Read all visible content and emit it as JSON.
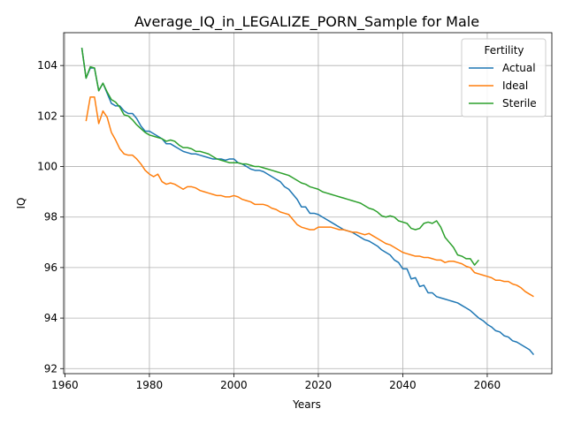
{
  "chart_data": {
    "type": "line",
    "title": "Average_IQ_in_LEGALIZE_PORN_Sample for Male",
    "xlabel": "Years",
    "ylabel": "IQ",
    "xlim": [
      1959.7,
      2075.3
    ],
    "ylim": [
      91.8,
      105.3
    ],
    "xticks": [
      1960,
      1980,
      2000,
      2020,
      2040,
      2060
    ],
    "yticks": [
      92,
      94,
      96,
      98,
      100,
      102,
      104
    ],
    "grid": true,
    "legend": {
      "title": "Fertility",
      "placement": "top-right"
    },
    "series": [
      {
        "name": "Actual",
        "color": "#1f77b4",
        "points": [
          [
            1964,
            104.7
          ],
          [
            1965,
            103.5
          ],
          [
            1966,
            103.9
          ],
          [
            1967,
            103.9
          ],
          [
            1968,
            103.0
          ],
          [
            1969,
            103.3
          ],
          [
            1970,
            102.9
          ],
          [
            1971,
            102.5
          ],
          [
            1972,
            102.4
          ],
          [
            1973,
            102.4
          ],
          [
            1974,
            102.2
          ],
          [
            1975,
            102.1
          ],
          [
            1976,
            102.1
          ],
          [
            1977,
            101.9
          ],
          [
            1978,
            101.6
          ],
          [
            1979,
            101.4
          ],
          [
            1980,
            101.4
          ],
          [
            1981,
            101.3
          ],
          [
            1982,
            101.2
          ],
          [
            1983,
            101.1
          ],
          [
            1984,
            100.9
          ],
          [
            1985,
            100.9
          ],
          [
            1986,
            100.8
          ],
          [
            1987,
            100.7
          ],
          [
            1988,
            100.6
          ],
          [
            1989,
            100.55
          ],
          [
            1990,
            100.5
          ],
          [
            1991,
            100.5
          ],
          [
            1992,
            100.45
          ],
          [
            1993,
            100.4
          ],
          [
            1994,
            100.35
          ],
          [
            1995,
            100.3
          ],
          [
            1996,
            100.3
          ],
          [
            1997,
            100.3
          ],
          [
            1998,
            100.25
          ],
          [
            1999,
            100.3
          ],
          [
            2000,
            100.3
          ],
          [
            2001,
            100.15
          ],
          [
            2002,
            100.1
          ],
          [
            2003,
            100.0
          ],
          [
            2004,
            99.9
          ],
          [
            2005,
            99.85
          ],
          [
            2006,
            99.85
          ],
          [
            2007,
            99.8
          ],
          [
            2008,
            99.7
          ],
          [
            2009,
            99.6
          ],
          [
            2010,
            99.5
          ],
          [
            2011,
            99.4
          ],
          [
            2012,
            99.2
          ],
          [
            2013,
            99.1
          ],
          [
            2014,
            98.9
          ],
          [
            2015,
            98.7
          ],
          [
            2016,
            98.4
          ],
          [
            2017,
            98.4
          ],
          [
            2018,
            98.15
          ],
          [
            2019,
            98.15
          ],
          [
            2020,
            98.1
          ],
          [
            2021,
            98.0
          ],
          [
            2022,
            97.9
          ],
          [
            2023,
            97.8
          ],
          [
            2024,
            97.7
          ],
          [
            2025,
            97.6
          ],
          [
            2026,
            97.5
          ],
          [
            2027,
            97.45
          ],
          [
            2028,
            97.4
          ],
          [
            2029,
            97.3
          ],
          [
            2030,
            97.2
          ],
          [
            2031,
            97.1
          ],
          [
            2032,
            97.05
          ],
          [
            2033,
            96.95
          ],
          [
            2034,
            96.85
          ],
          [
            2035,
            96.7
          ],
          [
            2036,
            96.6
          ],
          [
            2037,
            96.5
          ],
          [
            2038,
            96.3
          ],
          [
            2039,
            96.2
          ],
          [
            2040,
            95.95
          ],
          [
            2041,
            95.95
          ],
          [
            2042,
            95.55
          ],
          [
            2043,
            95.6
          ],
          [
            2044,
            95.25
          ],
          [
            2045,
            95.3
          ],
          [
            2046,
            95.0
          ],
          [
            2047,
            95.0
          ],
          [
            2048,
            94.85
          ],
          [
            2049,
            94.8
          ],
          [
            2050,
            94.75
          ],
          [
            2051,
            94.7
          ],
          [
            2052,
            94.65
          ],
          [
            2053,
            94.6
          ],
          [
            2054,
            94.5
          ],
          [
            2055,
            94.4
          ],
          [
            2056,
            94.3
          ],
          [
            2057,
            94.15
          ],
          [
            2058,
            94.0
          ],
          [
            2059,
            93.9
          ],
          [
            2060,
            93.75
          ],
          [
            2061,
            93.65
          ],
          [
            2062,
            93.5
          ],
          [
            2063,
            93.45
          ],
          [
            2064,
            93.3
          ],
          [
            2065,
            93.25
          ],
          [
            2066,
            93.1
          ],
          [
            2067,
            93.05
          ],
          [
            2068,
            92.95
          ],
          [
            2069,
            92.85
          ],
          [
            2070,
            92.75
          ],
          [
            2071,
            92.55
          ]
        ]
      },
      {
        "name": "Ideal",
        "color": "#ff7f0e",
        "points": [
          [
            1965,
            101.8
          ],
          [
            1966,
            102.75
          ],
          [
            1967,
            102.75
          ],
          [
            1968,
            101.7
          ],
          [
            1969,
            102.2
          ],
          [
            1970,
            101.95
          ],
          [
            1971,
            101.35
          ],
          [
            1972,
            101.05
          ],
          [
            1973,
            100.7
          ],
          [
            1974,
            100.5
          ],
          [
            1975,
            100.45
          ],
          [
            1976,
            100.45
          ],
          [
            1977,
            100.3
          ],
          [
            1978,
            100.1
          ],
          [
            1979,
            99.85
          ],
          [
            1980,
            99.7
          ],
          [
            1981,
            99.6
          ],
          [
            1982,
            99.7
          ],
          [
            1983,
            99.4
          ],
          [
            1984,
            99.3
          ],
          [
            1985,
            99.35
          ],
          [
            1986,
            99.3
          ],
          [
            1987,
            99.2
          ],
          [
            1988,
            99.1
          ],
          [
            1989,
            99.2
          ],
          [
            1990,
            99.2
          ],
          [
            1991,
            99.15
          ],
          [
            1992,
            99.05
          ],
          [
            1993,
            99.0
          ],
          [
            1994,
            98.95
          ],
          [
            1995,
            98.9
          ],
          [
            1996,
            98.85
          ],
          [
            1997,
            98.85
          ],
          [
            1998,
            98.8
          ],
          [
            1999,
            98.8
          ],
          [
            2000,
            98.85
          ],
          [
            2001,
            98.8
          ],
          [
            2002,
            98.7
          ],
          [
            2003,
            98.65
          ],
          [
            2004,
            98.6
          ],
          [
            2005,
            98.5
          ],
          [
            2006,
            98.5
          ],
          [
            2007,
            98.5
          ],
          [
            2008,
            98.45
          ],
          [
            2009,
            98.35
          ],
          [
            2010,
            98.3
          ],
          [
            2011,
            98.2
          ],
          [
            2012,
            98.15
          ],
          [
            2013,
            98.1
          ],
          [
            2014,
            97.9
          ],
          [
            2015,
            97.7
          ],
          [
            2016,
            97.6
          ],
          [
            2017,
            97.55
          ],
          [
            2018,
            97.5
          ],
          [
            2019,
            97.5
          ],
          [
            2020,
            97.6
          ],
          [
            2021,
            97.6
          ],
          [
            2022,
            97.6
          ],
          [
            2023,
            97.6
          ],
          [
            2024,
            97.55
          ],
          [
            2025,
            97.5
          ],
          [
            2026,
            97.5
          ],
          [
            2027,
            97.45
          ],
          [
            2028,
            97.4
          ],
          [
            2029,
            97.4
          ],
          [
            2030,
            97.35
          ],
          [
            2031,
            97.3
          ],
          [
            2032,
            97.35
          ],
          [
            2033,
            97.25
          ],
          [
            2034,
            97.15
          ],
          [
            2035,
            97.05
          ],
          [
            2036,
            96.95
          ],
          [
            2037,
            96.9
          ],
          [
            2038,
            96.8
          ],
          [
            2039,
            96.7
          ],
          [
            2040,
            96.6
          ],
          [
            2041,
            96.55
          ],
          [
            2042,
            96.5
          ],
          [
            2043,
            96.45
          ],
          [
            2044,
            96.45
          ],
          [
            2045,
            96.4
          ],
          [
            2046,
            96.4
          ],
          [
            2047,
            96.35
          ],
          [
            2048,
            96.3
          ],
          [
            2049,
            96.3
          ],
          [
            2050,
            96.2
          ],
          [
            2051,
            96.25
          ],
          [
            2052,
            96.25
          ],
          [
            2053,
            96.2
          ],
          [
            2054,
            96.15
          ],
          [
            2055,
            96.05
          ],
          [
            2056,
            96.0
          ],
          [
            2057,
            95.8
          ],
          [
            2058,
            95.75
          ],
          [
            2059,
            95.7
          ],
          [
            2060,
            95.65
          ],
          [
            2061,
            95.6
          ],
          [
            2062,
            95.5
          ],
          [
            2063,
            95.5
          ],
          [
            2064,
            95.45
          ],
          [
            2065,
            95.45
          ],
          [
            2066,
            95.35
          ],
          [
            2067,
            95.3
          ],
          [
            2068,
            95.2
          ],
          [
            2069,
            95.05
          ],
          [
            2070,
            94.95
          ],
          [
            2071,
            94.85
          ]
        ]
      },
      {
        "name": "Sterile",
        "color": "#2ca02c",
        "points": [
          [
            1964,
            104.7
          ],
          [
            1965,
            103.5
          ],
          [
            1966,
            103.95
          ],
          [
            1967,
            103.9
          ],
          [
            1968,
            103.0
          ],
          [
            1969,
            103.3
          ],
          [
            1970,
            102.95
          ],
          [
            1971,
            102.65
          ],
          [
            1972,
            102.55
          ],
          [
            1973,
            102.35
          ],
          [
            1974,
            102.05
          ],
          [
            1975,
            102.0
          ],
          [
            1976,
            101.85
          ],
          [
            1977,
            101.65
          ],
          [
            1978,
            101.5
          ],
          [
            1979,
            101.35
          ],
          [
            1980,
            101.25
          ],
          [
            1981,
            101.2
          ],
          [
            1982,
            101.15
          ],
          [
            1983,
            101.1
          ],
          [
            1984,
            101.0
          ],
          [
            1985,
            101.05
          ],
          [
            1986,
            101.0
          ],
          [
            1987,
            100.85
          ],
          [
            1988,
            100.75
          ],
          [
            1989,
            100.75
          ],
          [
            1990,
            100.7
          ],
          [
            1991,
            100.6
          ],
          [
            1992,
            100.6
          ],
          [
            1993,
            100.55
          ],
          [
            1994,
            100.5
          ],
          [
            1995,
            100.4
          ],
          [
            1996,
            100.3
          ],
          [
            1997,
            100.25
          ],
          [
            1998,
            100.2
          ],
          [
            1999,
            100.15
          ],
          [
            2000,
            100.15
          ],
          [
            2001,
            100.15
          ],
          [
            2002,
            100.1
          ],
          [
            2003,
            100.1
          ],
          [
            2004,
            100.05
          ],
          [
            2005,
            100.0
          ],
          [
            2006,
            100.0
          ],
          [
            2007,
            99.95
          ],
          [
            2008,
            99.9
          ],
          [
            2009,
            99.85
          ],
          [
            2010,
            99.8
          ],
          [
            2011,
            99.75
          ],
          [
            2012,
            99.7
          ],
          [
            2013,
            99.65
          ],
          [
            2014,
            99.55
          ],
          [
            2015,
            99.45
          ],
          [
            2016,
            99.35
          ],
          [
            2017,
            99.3
          ],
          [
            2018,
            99.2
          ],
          [
            2019,
            99.15
          ],
          [
            2020,
            99.1
          ],
          [
            2021,
            99.0
          ],
          [
            2022,
            98.95
          ],
          [
            2023,
            98.9
          ],
          [
            2024,
            98.85
          ],
          [
            2025,
            98.8
          ],
          [
            2026,
            98.75
          ],
          [
            2027,
            98.7
          ],
          [
            2028,
            98.65
          ],
          [
            2029,
            98.6
          ],
          [
            2030,
            98.55
          ],
          [
            2031,
            98.45
          ],
          [
            2032,
            98.35
          ],
          [
            2033,
            98.3
          ],
          [
            2034,
            98.2
          ],
          [
            2035,
            98.05
          ],
          [
            2036,
            98.0
          ],
          [
            2037,
            98.05
          ],
          [
            2038,
            98.0
          ],
          [
            2039,
            97.85
          ],
          [
            2040,
            97.8
          ],
          [
            2041,
            97.75
          ],
          [
            2042,
            97.55
          ],
          [
            2043,
            97.5
          ],
          [
            2044,
            97.55
          ],
          [
            2045,
            97.75
          ],
          [
            2046,
            97.8
          ],
          [
            2047,
            97.75
          ],
          [
            2048,
            97.85
          ],
          [
            2049,
            97.6
          ],
          [
            2050,
            97.2
          ],
          [
            2051,
            97.0
          ],
          [
            2052,
            96.8
          ],
          [
            2053,
            96.5
          ],
          [
            2054,
            96.45
          ],
          [
            2055,
            96.35
          ],
          [
            2056,
            96.35
          ],
          [
            2057,
            96.1
          ],
          [
            2058,
            96.3
          ]
        ]
      }
    ]
  }
}
